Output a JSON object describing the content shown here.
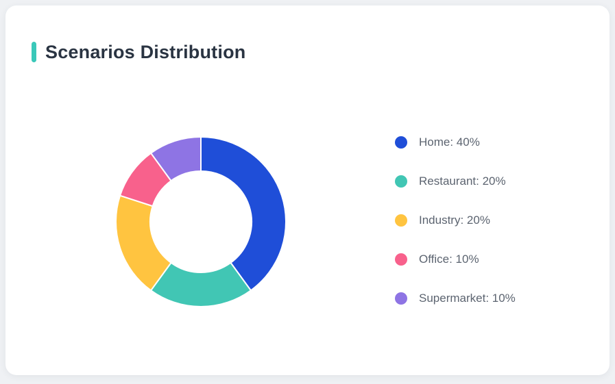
{
  "card": {
    "title": "Scenarios Distribution",
    "accent_color": "#3AC8B9"
  },
  "chart_data": {
    "type": "pie",
    "subtype": "donut",
    "title": "Scenarios Distribution",
    "legend_position": "right",
    "start_angle_deg": 0,
    "direction": "clockwise",
    "inner_radius_ratio": 0.6,
    "unit": "%",
    "categories": [
      "Home",
      "Restaurant",
      "Industry",
      "Office",
      "Supermarket"
    ],
    "values": [
      40,
      20,
      20,
      10,
      10
    ],
    "series": [
      {
        "name": "Home",
        "value": 40,
        "color": "#1F4ED8",
        "legend_label": "Home: 40%"
      },
      {
        "name": "Restaurant",
        "value": 20,
        "color": "#41C6B4",
        "legend_label": "Restaurant: 20%"
      },
      {
        "name": "Industry",
        "value": 20,
        "color": "#FFC440",
        "legend_label": "Industry: 20%"
      },
      {
        "name": "Office",
        "value": 10,
        "color": "#F8618C",
        "legend_label": "Office: 10%"
      },
      {
        "name": "Supermarket",
        "value": 10,
        "color": "#8E74E4",
        "legend_label": "Supermarket: 10%"
      }
    ]
  }
}
